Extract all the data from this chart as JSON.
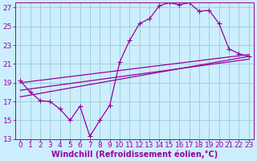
{
  "xlabel": "Windchill (Refroidissement éolien,°C)",
  "background_color": "#cceeff",
  "grid_color": "#99cccc",
  "line_color": "#990099",
  "xlim": [
    -0.5,
    23.5
  ],
  "ylim": [
    13,
    27.5
  ],
  "xticks": [
    0,
    1,
    2,
    3,
    4,
    5,
    6,
    7,
    8,
    9,
    10,
    11,
    12,
    13,
    14,
    15,
    16,
    17,
    18,
    19,
    20,
    21,
    22,
    23
  ],
  "yticks": [
    13,
    15,
    17,
    19,
    21,
    23,
    25,
    27
  ],
  "line1_x": [
    0,
    1,
    2,
    3,
    4,
    5,
    6,
    7,
    8,
    9,
    10,
    11,
    12,
    13,
    14,
    15,
    16,
    17,
    18,
    19,
    20,
    21,
    22,
    23
  ],
  "line1_y": [
    19.2,
    18.0,
    17.1,
    17.0,
    16.2,
    15.0,
    16.5,
    13.3,
    15.0,
    16.6,
    21.2,
    23.5,
    25.3,
    25.8,
    27.2,
    27.5,
    27.3,
    27.5,
    26.6,
    26.7,
    25.3,
    22.6,
    22.1,
    21.8
  ],
  "line2_x": [
    0,
    23
  ],
  "line2_y": [
    19.0,
    22.0
  ],
  "line3_x": [
    0,
    23
  ],
  "line3_y": [
    18.2,
    21.5
  ],
  "line4_x": [
    0,
    23
  ],
  "line4_y": [
    17.5,
    21.8
  ],
  "fontsize_tick": 6.5,
  "fontsize_xlabel": 7,
  "markersize": 2.5
}
